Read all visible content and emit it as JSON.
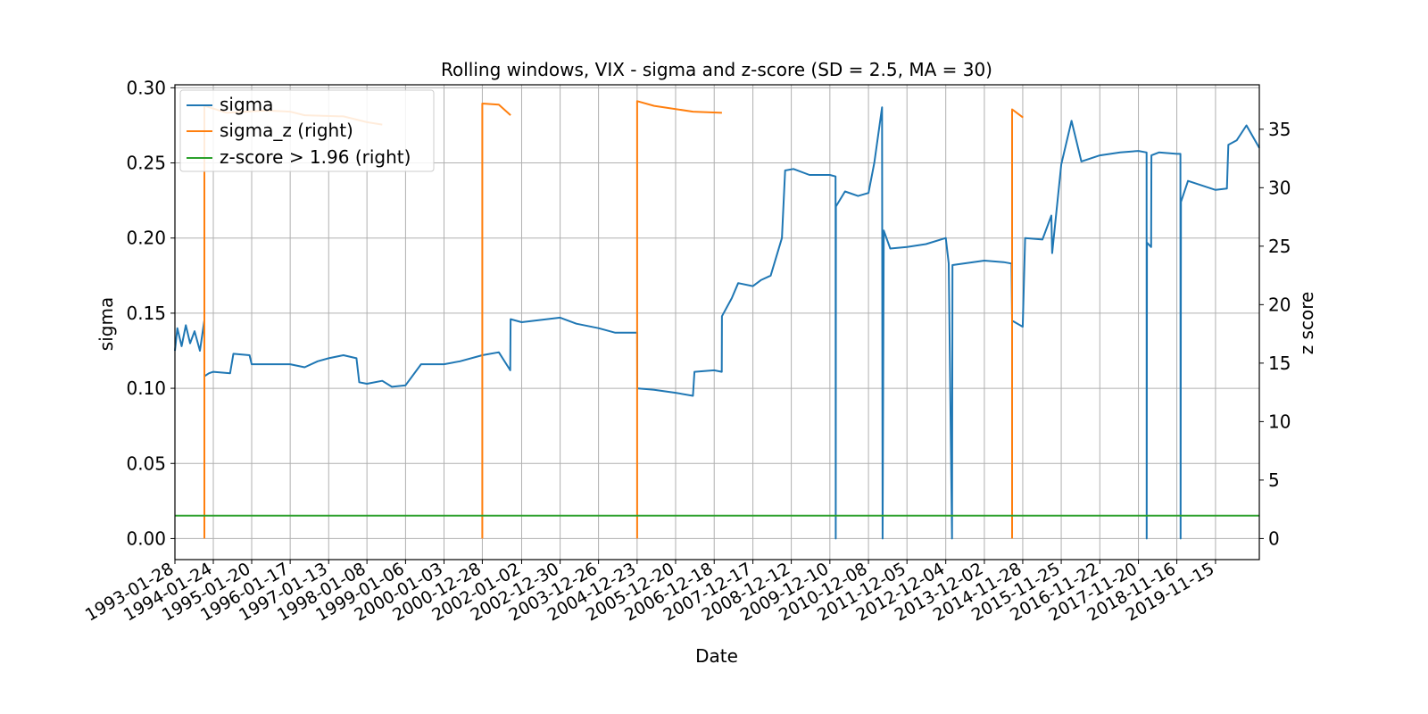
{
  "chart_data": {
    "type": "line",
    "title": "Rolling windows, VIX - sigma and z-score (SD = 2.5, MA = 30)",
    "xlabel": "Date",
    "ylabel": "sigma",
    "y2label": "z score",
    "xlim": [
      "1993-01-28",
      "2020-12-31"
    ],
    "ylim": [
      -0.014,
      0.302
    ],
    "y2lim": [
      -1.8,
      38.8
    ],
    "yticks": [
      "0.00",
      "0.05",
      "0.10",
      "0.15",
      "0.20",
      "0.25",
      "0.30"
    ],
    "y2ticks": [
      "0",
      "5",
      "10",
      "15",
      "20",
      "25",
      "30",
      "35"
    ],
    "xticks": [
      "1993-01-28",
      "1994-01-24",
      "1995-01-20",
      "1996-01-17",
      "1997-01-13",
      "1998-01-08",
      "1999-01-06",
      "2000-01-03",
      "2000-12-28",
      "2002-01-02",
      "2002-12-30",
      "2003-12-26",
      "2004-12-23",
      "2005-12-20",
      "2006-12-18",
      "2007-12-17",
      "2008-12-12",
      "2009-12-10",
      "2010-12-08",
      "2011-12-05",
      "2012-12-04",
      "2013-12-02",
      "2014-11-28",
      "2015-11-25",
      "2016-11-22",
      "2017-11-20",
      "2018-11-16",
      "2019-11-15"
    ],
    "grid": true,
    "legend": {
      "placement": "top-left",
      "entries": [
        "sigma",
        "sigma_z (right)",
        "z-score > 1.96 (right)"
      ]
    },
    "colors": {
      "sigma": "#1f77b4",
      "sigma_z": "#ff7f0e",
      "threshold": "#2ca02c"
    },
    "series": [
      {
        "name": "sigma",
        "axis": "left",
        "points": [
          [
            "1993-01-28",
            0.125
          ],
          [
            "1993-02-20",
            0.14
          ],
          [
            "1993-04-01",
            0.128
          ],
          [
            "1993-05-10",
            0.142
          ],
          [
            "1993-06-20",
            0.13
          ],
          [
            "1993-08-01",
            0.138
          ],
          [
            "1993-09-20",
            0.125
          ],
          [
            "1993-10-31",
            0.145
          ],
          [
            "1993-11-01",
            0.108
          ],
          [
            "1993-12-15",
            0.11
          ],
          [
            "1994-01-24",
            0.111
          ],
          [
            "1994-07-01",
            0.11
          ],
          [
            "1994-08-01",
            0.123
          ],
          [
            "1994-12-31",
            0.122
          ],
          [
            "1995-01-20",
            0.116
          ],
          [
            "1996-01-17",
            0.116
          ],
          [
            "1996-06-01",
            0.114
          ],
          [
            "1996-10-01",
            0.118
          ],
          [
            "1997-01-13",
            0.12
          ],
          [
            "1997-06-01",
            0.122
          ],
          [
            "1997-10-01",
            0.12
          ],
          [
            "1997-10-27",
            0.104
          ],
          [
            "1998-01-08",
            0.103
          ],
          [
            "1998-06-01",
            0.105
          ],
          [
            "1998-08-31",
            0.101
          ],
          [
            "1999-01-06",
            0.102
          ],
          [
            "1999-06-01",
            0.116
          ],
          [
            "2000-01-03",
            0.116
          ],
          [
            "2000-06-01",
            0.118
          ],
          [
            "2000-12-28",
            0.122
          ],
          [
            "2001-06-01",
            0.124
          ],
          [
            "2001-09-17",
            0.112
          ],
          [
            "2001-09-20",
            0.146
          ],
          [
            "2002-01-02",
            0.144
          ],
          [
            "2002-12-30",
            0.147
          ],
          [
            "2003-06-01",
            0.143
          ],
          [
            "2003-12-26",
            0.14
          ],
          [
            "2004-06-01",
            0.137
          ],
          [
            "2004-12-23",
            0.137
          ],
          [
            "2004-12-24",
            0.1
          ],
          [
            "2005-06-01",
            0.099
          ],
          [
            "2005-12-20",
            0.097
          ],
          [
            "2006-06-01",
            0.095
          ],
          [
            "2006-06-15",
            0.111
          ],
          [
            "2006-12-18",
            0.112
          ],
          [
            "2007-02-27",
            0.111
          ],
          [
            "2007-03-01",
            0.148
          ],
          [
            "2007-06-01",
            0.16
          ],
          [
            "2007-08-01",
            0.17
          ],
          [
            "2007-12-17",
            0.168
          ],
          [
            "2008-03-01",
            0.172
          ],
          [
            "2008-06-01",
            0.175
          ],
          [
            "2008-09-15",
            0.2
          ],
          [
            "2008-10-15",
            0.245
          ],
          [
            "2009-01-01",
            0.246
          ],
          [
            "2009-06-01",
            0.242
          ],
          [
            "2009-12-10",
            0.242
          ],
          [
            "2010-02-01",
            0.241
          ],
          [
            "2010-02-03",
            0.0
          ],
          [
            "2010-02-05",
            0.221
          ],
          [
            "2010-05-01",
            0.231
          ],
          [
            "2010-09-01",
            0.228
          ],
          [
            "2010-12-08",
            0.23
          ],
          [
            "2011-02-01",
            0.25
          ],
          [
            "2011-04-15",
            0.287
          ],
          [
            "2011-04-20",
            0.0
          ],
          [
            "2011-05-01",
            0.205
          ],
          [
            "2011-07-01",
            0.193
          ],
          [
            "2011-12-05",
            0.194
          ],
          [
            "2012-06-01",
            0.196
          ],
          [
            "2012-12-04",
            0.2
          ],
          [
            "2013-01-01",
            0.183
          ],
          [
            "2013-02-01",
            0.0
          ],
          [
            "2013-02-05",
            0.182
          ],
          [
            "2013-12-02",
            0.185
          ],
          [
            "2014-06-01",
            0.184
          ],
          [
            "2014-08-15",
            0.183
          ],
          [
            "2014-08-20",
            0.145
          ],
          [
            "2014-11-28",
            0.141
          ],
          [
            "2014-12-20",
            0.2
          ],
          [
            "2015-06-01",
            0.199
          ],
          [
            "2015-08-24",
            0.215
          ],
          [
            "2015-09-01",
            0.19
          ],
          [
            "2015-11-25",
            0.249
          ],
          [
            "2016-03-01",
            0.278
          ],
          [
            "2016-06-01",
            0.251
          ],
          [
            "2016-11-22",
            0.255
          ],
          [
            "2017-06-01",
            0.257
          ],
          [
            "2017-11-20",
            0.258
          ],
          [
            "2018-02-05",
            0.257
          ],
          [
            "2018-02-06",
            0.0
          ],
          [
            "2018-02-08",
            0.197
          ],
          [
            "2018-03-20",
            0.194
          ],
          [
            "2018-03-22",
            0.255
          ],
          [
            "2018-06-01",
            0.257
          ],
          [
            "2018-11-16",
            0.256
          ],
          [
            "2018-12-20",
            0.256
          ],
          [
            "2018-12-22",
            0.0
          ],
          [
            "2018-12-25",
            0.224
          ],
          [
            "2019-03-01",
            0.238
          ],
          [
            "2019-11-15",
            0.232
          ],
          [
            "2020-03-01",
            0.233
          ],
          [
            "2020-03-15",
            0.262
          ],
          [
            "2020-06-01",
            0.265
          ],
          [
            "2020-09-01",
            0.275
          ],
          [
            "2020-12-31",
            0.26
          ]
        ]
      },
      {
        "name": "sigma_z (right)",
        "axis": "right",
        "segments": [
          [
            [
              "1993-11-01",
              0.0
            ],
            [
              "1993-11-01",
              37.0
            ],
            [
              "1994-06-01",
              36.4
            ],
            [
              "1995-06-01",
              36.6
            ],
            [
              "1996-01-17",
              36.5
            ],
            [
              "1996-06-01",
              36.2
            ],
            [
              "1997-06-01",
              36.1
            ],
            [
              "1998-01-08",
              35.6
            ],
            [
              "1998-06-01",
              35.4
            ]
          ],
          [
            [
              "2000-12-28",
              0.0
            ],
            [
              "2000-12-28",
              37.2
            ],
            [
              "2001-06-01",
              37.1
            ],
            [
              "2001-09-20",
              36.2
            ]
          ],
          [
            [
              "2004-12-23",
              0.0
            ],
            [
              "2004-12-23",
              37.4
            ],
            [
              "2005-06-01",
              37.0
            ],
            [
              "2006-06-01",
              36.5
            ],
            [
              "2007-03-01",
              36.4
            ]
          ],
          [
            [
              "2014-08-20",
              0.0
            ],
            [
              "2014-08-20",
              36.7
            ],
            [
              "2014-12-01",
              36.0
            ]
          ]
        ]
      },
      {
        "name": "z-score > 1.96 (right)",
        "axis": "right",
        "constant": 1.96
      }
    ]
  }
}
